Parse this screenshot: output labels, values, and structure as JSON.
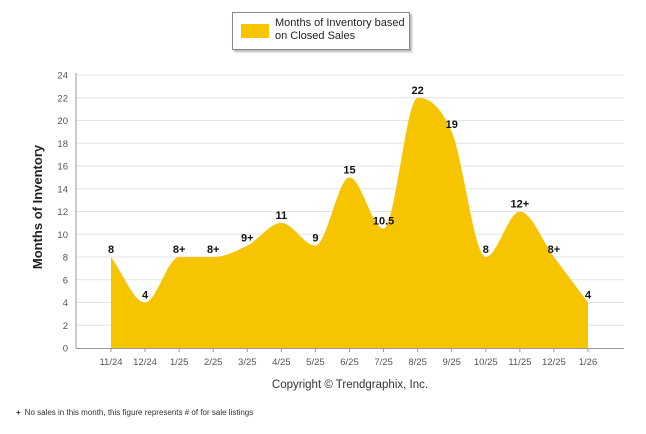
{
  "chart_data": {
    "type": "area",
    "title": "",
    "legend": "Months of Inventory based on Closed Sales",
    "legend_position": "top-center",
    "ylabel": "Months of Inventory",
    "xlabel": "Copyright © Trendgraphix, Inc.",
    "categories": [
      "11/24",
      "12/24",
      "1/25",
      "2/25",
      "3/25",
      "4/25",
      "5/25",
      "6/25",
      "7/25",
      "8/25",
      "9/25",
      "10/25",
      "11/25",
      "12/25",
      "1/26"
    ],
    "values": [
      8,
      4,
      8,
      8,
      9,
      11,
      9,
      15,
      10.5,
      22,
      19,
      8,
      12,
      8,
      4
    ],
    "data_labels": [
      "8",
      "4",
      "8+",
      "8+",
      "9+",
      "11",
      "9",
      "15",
      "10.5",
      "22",
      "19",
      "8",
      "12+",
      "8+",
      "4"
    ],
    "ylim": [
      0,
      24
    ],
    "yticks": [
      0,
      2,
      4,
      6,
      8,
      10,
      12,
      14,
      16,
      18,
      20,
      22,
      24
    ],
    "grid": true,
    "colors": {
      "fill": "#f7c500",
      "grid": "#e3e3e3",
      "axis": "#999999"
    }
  },
  "footnote": {
    "marker": "+",
    "text": "No sales in this month, this figure represents # of for sale listings"
  }
}
